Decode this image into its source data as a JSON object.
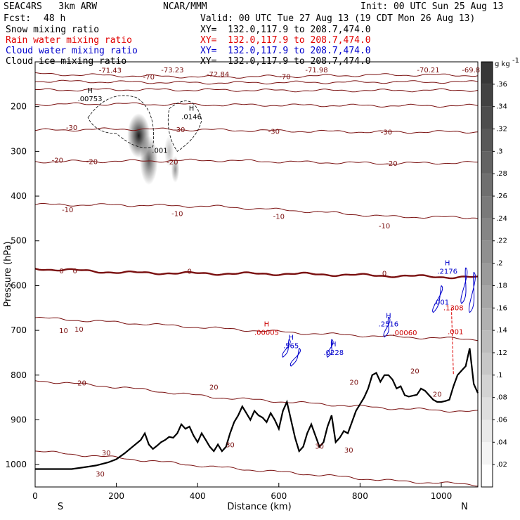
{
  "header": {
    "model": "SEAC4RS   3km ARW",
    "org": "NCAR/MMM",
    "init": "Init: 00 UTC Sun 25 Aug 13",
    "fcst_label": "Fcst:",
    "fcst_value": "48 h",
    "valid": "Valid: 00 UTC Tue 27 Aug 13 (19 CDT Mon 26 Aug 13)"
  },
  "fields": [
    {
      "name": "Snow mixing ratio",
      "xy": "XY=  132.0,117.9 to 208.7,474.0",
      "color": "#000000"
    },
    {
      "name": "Rain water mixing ratio",
      "xy": "XY=  132.0,117.9 to 208.7,474.0",
      "color": "#ff0000"
    },
    {
      "name": "Cloud water mixing ratio",
      "xy": "XY=  132.0,117.9 to 208.7,474.0",
      "color": "#0000cc"
    },
    {
      "name": "Cloud ice mixing ratio",
      "xy": "XY=  132.0,117.9 to 208.7,474.0",
      "color": "#000000"
    }
  ],
  "chart_data": {
    "type": "cross-section",
    "xlabel": "Distance (km)",
    "ylabel": "Pressure (hPa)",
    "xlim": [
      0,
      1090
    ],
    "ylim": [
      1050,
      100
    ],
    "y_scale": "linear, inverted",
    "x_ticks": [
      "0",
      "200",
      "400",
      "600",
      "800",
      "1000"
    ],
    "x_tick_values": [
      0,
      200,
      400,
      600,
      800,
      1000
    ],
    "y_ticks": [
      "200",
      "300",
      "400",
      "500",
      "600",
      "700",
      "800",
      "900",
      "1000"
    ],
    "y_tick_values": [
      200,
      300,
      400,
      500,
      600,
      700,
      800,
      900,
      1000
    ],
    "direction_labels": [
      "S",
      "N"
    ],
    "colorbar": {
      "unit": "g kg",
      "unit_exp": "-1",
      "ticks": [
        ".02",
        ".04",
        ".06",
        ".08",
        ".1",
        ".12",
        ".14",
        ".16",
        ".18",
        ".2",
        ".22",
        ".24",
        ".26",
        ".28",
        ".3",
        ".32",
        ".34",
        ".36"
      ],
      "tick_values": [
        0.02,
        0.04,
        0.06,
        0.08,
        0.1,
        0.12,
        0.14,
        0.16,
        0.18,
        0.2,
        0.22,
        0.24,
        0.26,
        0.28,
        0.3,
        0.32,
        0.34,
        0.36
      ],
      "max": 0.38
    },
    "temperature_contours_degC": [
      {
        "value": -70,
        "p": [
          127,
          131,
          134,
          132,
          129,
          130
        ]
      },
      {
        "value": -60,
        "p": [
          143,
          145,
          147,
          146,
          145,
          145
        ]
      },
      {
        "value": -50,
        "p": [
          163,
          162,
          163,
          164,
          164,
          163
        ]
      },
      {
        "value": -40,
        "p": [
          195,
          194,
          196,
          197,
          198,
          198
        ]
      },
      {
        "value": -30,
        "p": [
          253,
          250,
          252,
          255,
          257,
          256
        ]
      },
      {
        "value": -20,
        "p": [
          323,
          322,
          320,
          324,
          327,
          325
        ]
      },
      {
        "value": -10,
        "p": [
          419,
          420,
          423,
          433,
          446,
          448
        ]
      },
      {
        "value": 0,
        "p": [
          562,
          571,
          573,
          574,
          578,
          582
        ]
      },
      {
        "value": 10,
        "p": [
          672,
          683,
          695,
          706,
          714,
          720
        ]
      },
      {
        "value": 20,
        "p": [
          812,
          828,
          849,
          862,
          874,
          882
        ]
      },
      {
        "value": 30,
        "p": [
          970,
          986,
          1005,
          1020,
          1036,
          1045
        ]
      }
    ],
    "contour_x_km": [
      0,
      218,
      436,
      654,
      872,
      1090
    ],
    "temperature_labels": [
      {
        "text": "-71.43",
        "x": 185,
        "p": 118
      },
      {
        "text": "-73.23",
        "x": 338,
        "p": 117
      },
      {
        "text": "-72.84",
        "x": 450,
        "p": 127
      },
      {
        "text": "-71.98",
        "x": 693,
        "p": 117
      },
      {
        "text": "-70.21",
        "x": 968,
        "p": 117
      },
      {
        "text": "-69.8",
        "x": 1073,
        "p": 117
      },
      {
        "text": "-70",
        "x": 280,
        "p": 133
      },
      {
        "text": "-70",
        "x": 615,
        "p": 132
      },
      {
        "text": "-30",
        "x": 90,
        "p": 246
      },
      {
        "text": "-30",
        "x": 355,
        "p": 251
      },
      {
        "text": "-30",
        "x": 588,
        "p": 255
      },
      {
        "text": "-30",
        "x": 865,
        "p": 256
      },
      {
        "text": "-20",
        "x": 55,
        "p": 319
      },
      {
        "text": "-20",
        "x": 140,
        "p": 322
      },
      {
        "text": "-20",
        "x": 338,
        "p": 323
      },
      {
        "text": "-20",
        "x": 878,
        "p": 326
      },
      {
        "text": "-10",
        "x": 80,
        "p": 430
      },
      {
        "text": "-10",
        "x": 350,
        "p": 438
      },
      {
        "text": "-10",
        "x": 600,
        "p": 445
      },
      {
        "text": "-10",
        "x": 860,
        "p": 466
      },
      {
        "text": "0",
        "x": 65,
        "p": 566
      },
      {
        "text": "0",
        "x": 98,
        "p": 566
      },
      {
        "text": "0",
        "x": 380,
        "p": 567
      },
      {
        "text": "0",
        "x": 860,
        "p": 572
      },
      {
        "text": "10",
        "x": 70,
        "p": 700
      },
      {
        "text": "10",
        "x": 108,
        "p": 697
      },
      {
        "text": "20",
        "x": 115,
        "p": 817
      },
      {
        "text": "20",
        "x": 440,
        "p": 826
      },
      {
        "text": "20",
        "x": 785,
        "p": 815
      },
      {
        "text": "20",
        "x": 935,
        "p": 790
      },
      {
        "text": "20",
        "x": 990,
        "p": 842
      },
      {
        "text": "30",
        "x": 175,
        "p": 973
      },
      {
        "text": "30",
        "x": 160,
        "p": 1020
      },
      {
        "text": "30",
        "x": 480,
        "p": 955
      },
      {
        "text": "30",
        "x": 700,
        "p": 958
      },
      {
        "text": "30",
        "x": 772,
        "p": 967
      }
    ],
    "extrema_labels": [
      {
        "text": "H",
        "value": ".00753",
        "x": 135,
        "p": 185,
        "color": "#000000"
      },
      {
        "text": "H",
        "value": ".0146",
        "x": 385,
        "p": 225,
        "color": "#000000"
      },
      {
        "text": "",
        "value": ".001",
        "x": 307,
        "p": 300,
        "color": "#000000"
      },
      {
        "text": "H",
        "value": ".00005",
        "x": 570,
        "p": 707,
        "color": "#cc0000"
      },
      {
        "text": "H",
        "value": ".565",
        "x": 630,
        "p": 737,
        "color": "#0000cc"
      },
      {
        "text": "H",
        "value": ".0228",
        "x": 735,
        "p": 752,
        "color": "#0000cc"
      },
      {
        "text": "H",
        "value": ".2516",
        "x": 870,
        "p": 688,
        "color": "#0000cc"
      },
      {
        "text": "",
        "value": ".00060",
        "x": 910,
        "p": 708,
        "color": "#cc0000"
      },
      {
        "text": "H",
        "value": ".2176",
        "x": 1015,
        "p": 570,
        "color": "#0000cc"
      },
      {
        "text": "",
        "value": ".001",
        "x": 1000,
        "p": 639,
        "color": "#0000cc"
      },
      {
        "text": "",
        "value": ".1308",
        "x": 1030,
        "p": 652,
        "color": "#cc0000"
      },
      {
        "text": "",
        "value": ".001",
        "x": 1035,
        "p": 705,
        "color": "#cc0000"
      }
    ],
    "snow_blobs": [
      {
        "x": 255,
        "p": 265,
        "rx": 28,
        "rp": 50,
        "v": 0.34
      },
      {
        "x": 280,
        "p": 320,
        "rx": 22,
        "rp": 55,
        "v": 0.24
      },
      {
        "x": 330,
        "p": 300,
        "rx": 12,
        "rp": 35,
        "v": 0.1
      },
      {
        "x": 345,
        "p": 340,
        "rx": 10,
        "rp": 30,
        "v": 0.16
      }
    ],
    "terrain": {
      "x_km": [
        0,
        30,
        60,
        90,
        120,
        150,
        180,
        200,
        220,
        240,
        260,
        270,
        280,
        290,
        300,
        310,
        320,
        330,
        340,
        350,
        360,
        370,
        380,
        390,
        400,
        410,
        420,
        430,
        440,
        450,
        460,
        470,
        480,
        490,
        500,
        510,
        520,
        530,
        540,
        550,
        560,
        570,
        580,
        590,
        600,
        610,
        620,
        630,
        640,
        650,
        660,
        670,
        680,
        690,
        700,
        710,
        720,
        730,
        740,
        750,
        760,
        770,
        780,
        790,
        800,
        810,
        820,
        830,
        840,
        850,
        860,
        870,
        880,
        890,
        900,
        910,
        920,
        930,
        940,
        950,
        960,
        970,
        980,
        990,
        1000,
        1010,
        1020,
        1030,
        1040,
        1050,
        1060,
        1070,
        1080,
        1090
      ],
      "p_hPa": [
        1010,
        1010,
        1010,
        1010,
        1006,
        1002,
        995,
        988,
        975,
        960,
        945,
        930,
        955,
        965,
        958,
        950,
        945,
        938,
        940,
        930,
        910,
        920,
        915,
        935,
        950,
        930,
        945,
        960,
        970,
        955,
        970,
        960,
        930,
        905,
        890,
        870,
        885,
        900,
        880,
        890,
        895,
        905,
        885,
        900,
        920,
        880,
        860,
        900,
        940,
        970,
        960,
        930,
        910,
        935,
        960,
        950,
        915,
        890,
        950,
        940,
        925,
        930,
        905,
        880,
        865,
        850,
        830,
        800,
        795,
        815,
        800,
        800,
        810,
        830,
        825,
        845,
        848,
        846,
        844,
        830,
        835,
        845,
        855,
        860,
        860,
        858,
        855,
        825,
        800,
        790,
        780,
        740,
        820,
        840
      ]
    }
  }
}
